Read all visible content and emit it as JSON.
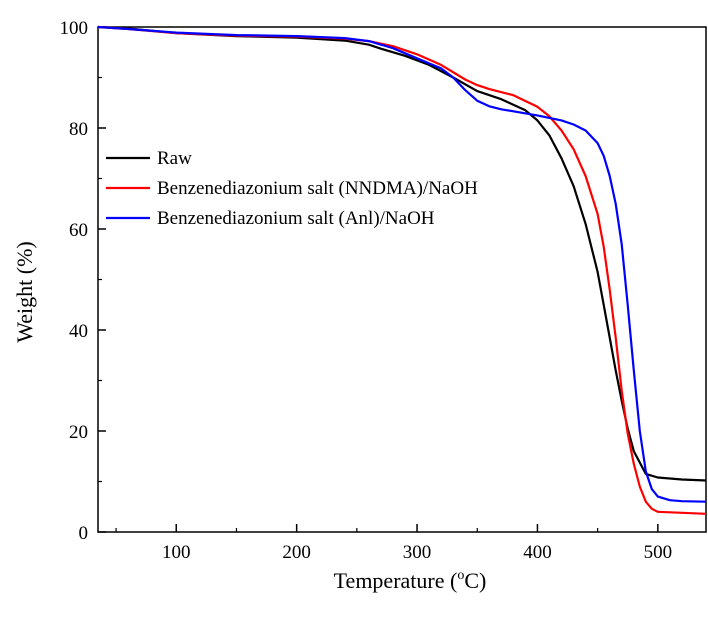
{
  "chart_data": {
    "type": "line",
    "title": "",
    "xlabel": "Temperature (",
    "xlabel_sup": "o",
    "xlabel_unit": "C)",
    "ylabel": "Weight (%)",
    "xlim": [
      35,
      540
    ],
    "ylim": [
      0,
      100
    ],
    "x_ticks": [
      100,
      200,
      300,
      400,
      500
    ],
    "y_ticks": [
      0,
      20,
      40,
      60,
      80,
      100
    ],
    "grid": false,
    "legend_position": "left",
    "series": [
      {
        "name": "Raw",
        "color": "#000000",
        "x": [
          35,
          60,
          100,
          150,
          200,
          240,
          260,
          270,
          290,
          310,
          330,
          350,
          370,
          390,
          400,
          410,
          420,
          430,
          440,
          450,
          455,
          460,
          465,
          470,
          475,
          480,
          490,
          500,
          520,
          540
        ],
        "y": [
          100,
          99.7,
          98.8,
          98.2,
          97.9,
          97.3,
          96.5,
          95.7,
          94.3,
          92.5,
          90.0,
          87.3,
          85.7,
          83.5,
          81.5,
          78.5,
          74.0,
          68.5,
          61.0,
          51.5,
          45.0,
          38.5,
          32.0,
          26.0,
          20.5,
          16.0,
          11.5,
          10.8,
          10.4,
          10.2
        ]
      },
      {
        "name": "Benzenediazonium salt (NNDMA)/NaOH",
        "color": "#ff0000",
        "x": [
          35,
          60,
          100,
          150,
          200,
          240,
          260,
          280,
          300,
          320,
          340,
          350,
          360,
          380,
          400,
          410,
          420,
          430,
          440,
          450,
          455,
          460,
          465,
          470,
          475,
          480,
          485,
          490,
          495,
          500,
          520,
          540
        ],
        "y": [
          100,
          99.6,
          98.8,
          98.3,
          98.1,
          97.7,
          97.2,
          96.2,
          94.6,
          92.5,
          89.6,
          88.5,
          87.7,
          86.5,
          84.2,
          82.3,
          79.5,
          75.8,
          70.5,
          63.0,
          56.5,
          48.0,
          38.5,
          28.0,
          19.5,
          13.5,
          9.0,
          6.0,
          4.6,
          4.0,
          3.8,
          3.6
        ]
      },
      {
        "name": "Benzenediazonium salt (Anl)/NaOH",
        "color": "#0000ff",
        "x": [
          35,
          60,
          100,
          150,
          200,
          240,
          260,
          280,
          300,
          320,
          330,
          340,
          350,
          360,
          370,
          380,
          400,
          420,
          430,
          440,
          450,
          455,
          460,
          465,
          470,
          475,
          480,
          485,
          490,
          495,
          500,
          510,
          520,
          540
        ],
        "y": [
          100,
          99.6,
          98.9,
          98.4,
          98.2,
          97.8,
          97.2,
          95.8,
          93.8,
          91.8,
          90.0,
          87.5,
          85.4,
          84.3,
          83.7,
          83.3,
          82.5,
          81.5,
          80.7,
          79.5,
          77.0,
          74.5,
          70.5,
          65.0,
          57.0,
          45.0,
          32.0,
          20.0,
          12.0,
          8.5,
          7.0,
          6.3,
          6.1,
          6.0
        ]
      }
    ]
  }
}
